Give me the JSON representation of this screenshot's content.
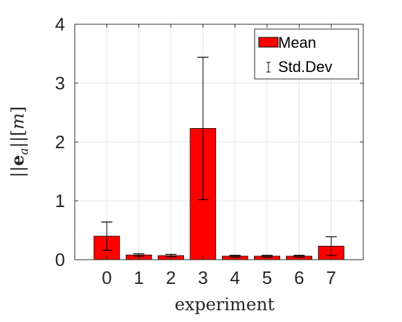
{
  "chart_data": {
    "type": "bar",
    "categories": [
      "0",
      "1",
      "2",
      "3",
      "4",
      "5",
      "6",
      "7"
    ],
    "series": [
      {
        "name": "Mean",
        "values": [
          0.4,
          0.08,
          0.07,
          2.23,
          0.06,
          0.06,
          0.06,
          0.23
        ],
        "std_dev": [
          0.24,
          0.02,
          0.02,
          1.21,
          0.015,
          0.015,
          0.015,
          0.16
        ]
      }
    ],
    "xlabel": "experiment",
    "ylabel": "||e_a||[m]",
    "ylim": [
      0,
      4
    ],
    "yticks": [
      0,
      1,
      2,
      3,
      4
    ],
    "grid": true,
    "legend": {
      "position": "top-right",
      "entries": [
        {
          "label": "Mean",
          "symbol": "bar"
        },
        {
          "label": "Std.Dev",
          "symbol": "errorbar"
        }
      ]
    },
    "colors": {
      "bar": "#ff0000",
      "bar_edge": "#000000",
      "errorbar": "#000000",
      "grid": "#e0e0e0"
    }
  }
}
